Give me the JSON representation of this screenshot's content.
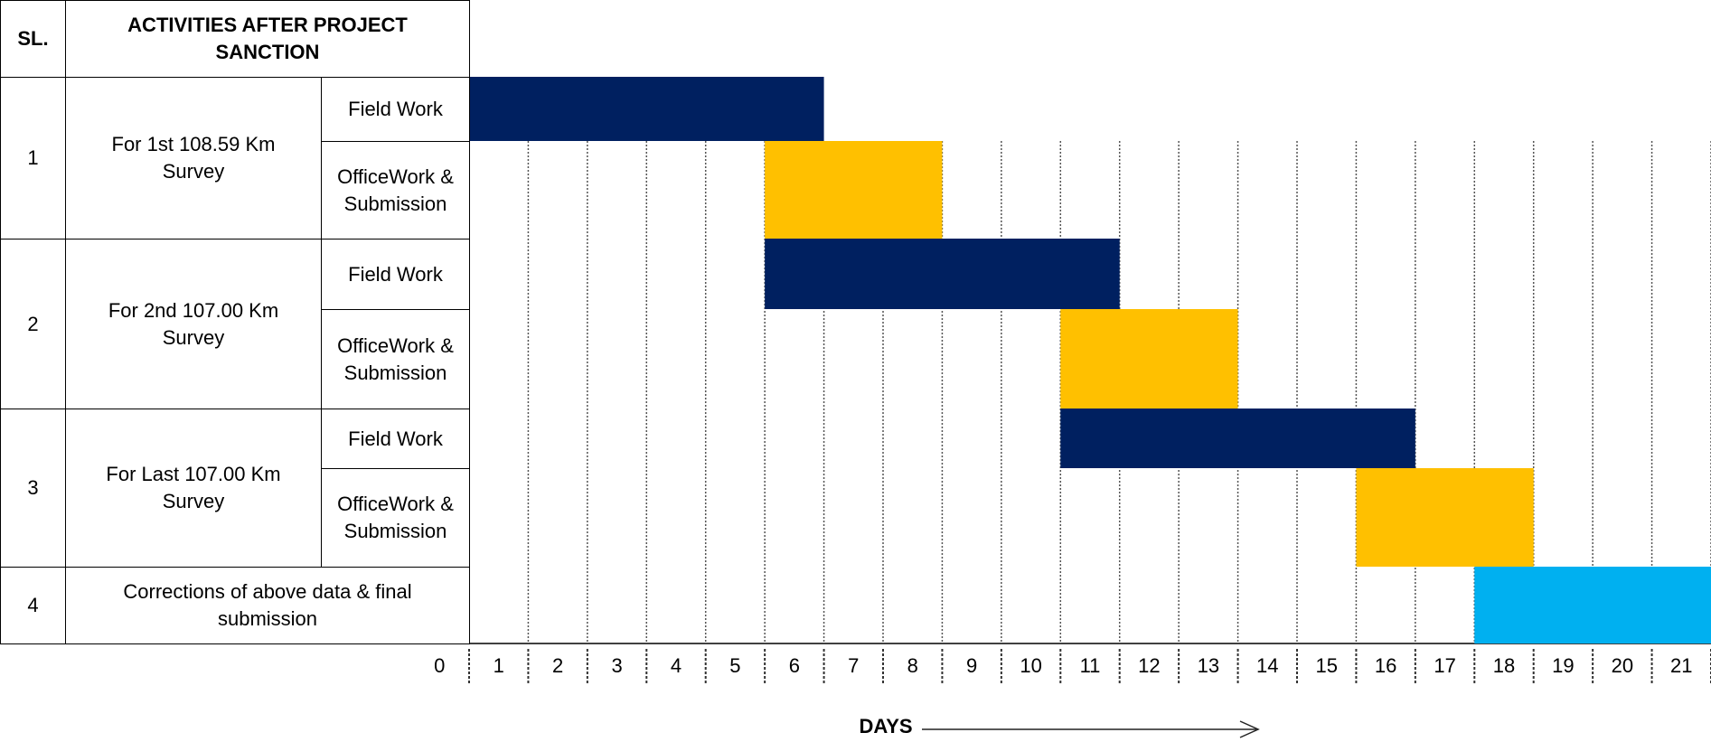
{
  "chart_data": {
    "type": "gantt",
    "header": {
      "sl": "SL.",
      "activities": "ACTIVITIES AFTER PROJECT SANCTION"
    },
    "groups": [
      {
        "sl": "1",
        "name": "For 1st 108.59 Km Survey",
        "tasks": [
          {
            "name": "Field Work",
            "start": 0,
            "end": 6,
            "color": "#002060"
          },
          {
            "name": "OfficeWork & Submission",
            "start": 5,
            "end": 8,
            "color": "#ffc000"
          }
        ]
      },
      {
        "sl": "2",
        "name": "For 2nd 107.00 Km Survey",
        "tasks": [
          {
            "name": "Field Work",
            "start": 5,
            "end": 11,
            "color": "#002060"
          },
          {
            "name": "OfficeWork & Submission",
            "start": 10,
            "end": 13,
            "color": "#ffc000"
          }
        ]
      },
      {
        "sl": "3",
        "name": "For Last  107.00 Km Survey",
        "tasks": [
          {
            "name": "Field Work",
            "start": 10,
            "end": 16,
            "color": "#002060"
          },
          {
            "name": "OfficeWork & Submission",
            "start": 15,
            "end": 18,
            "color": "#ffc000"
          }
        ]
      },
      {
        "sl": "4",
        "name": "Corrections of above data & final submission",
        "tasks": [
          {
            "start": 17,
            "end": 21,
            "color": "#00b0f0"
          }
        ]
      }
    ],
    "xlim": [
      0,
      21
    ],
    "xticks": [
      0,
      1,
      2,
      3,
      4,
      5,
      6,
      7,
      8,
      9,
      10,
      11,
      12,
      13,
      14,
      15,
      16,
      17,
      18,
      19,
      20,
      21
    ],
    "xlabel": "DAYS"
  }
}
